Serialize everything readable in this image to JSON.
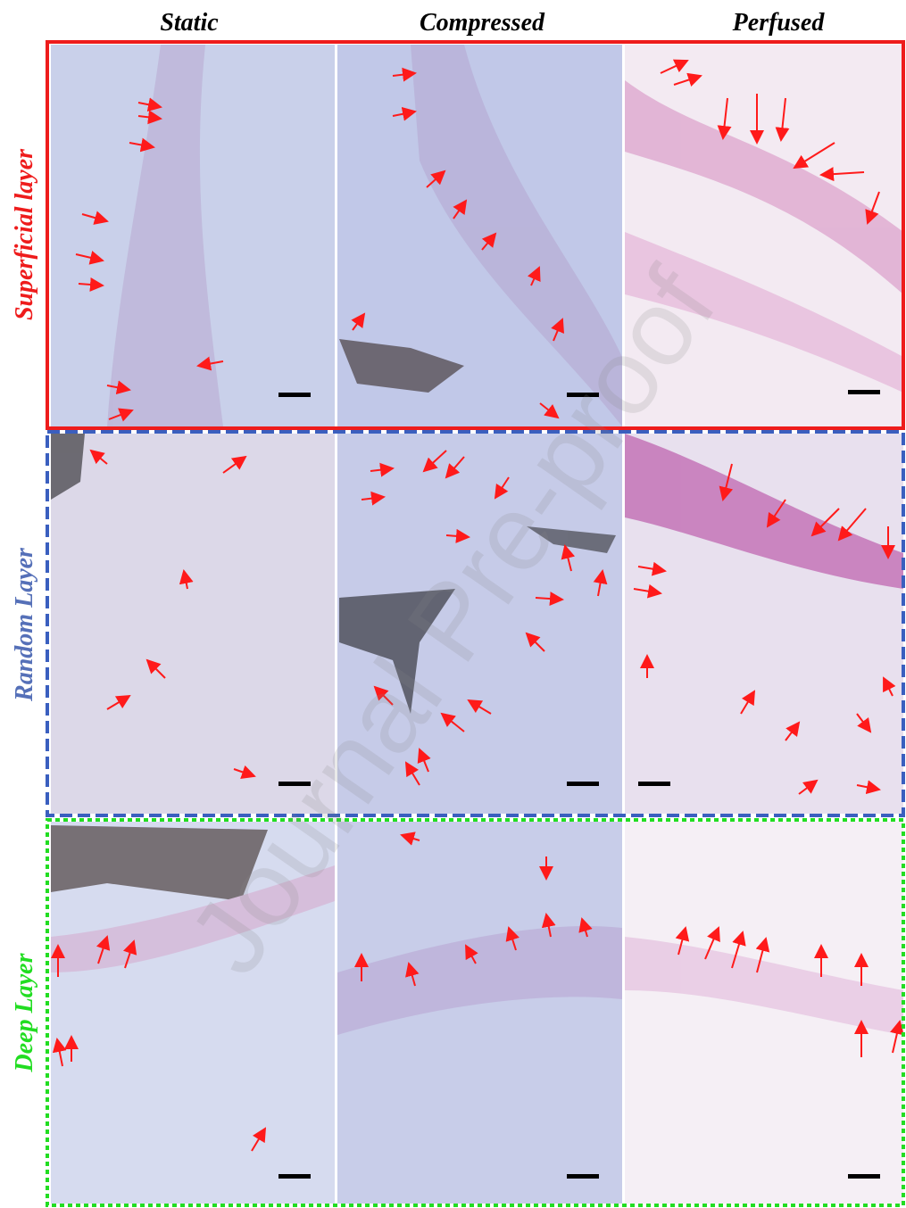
{
  "headers": [
    "Static",
    "Compressed",
    "Perfused"
  ],
  "rows": [
    "Superficial layer",
    "Random Layer",
    "Deep Layer"
  ],
  "watermark": "Journal Pre-proof"
}
